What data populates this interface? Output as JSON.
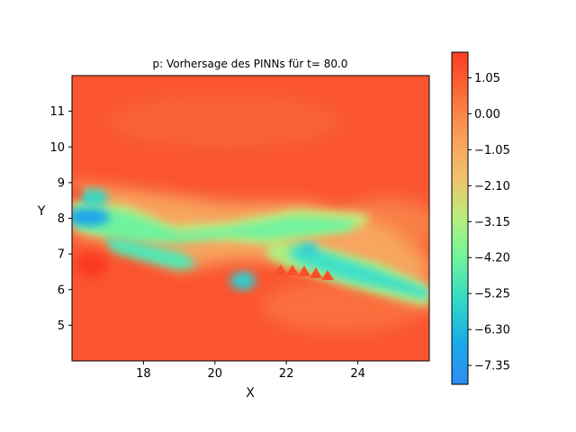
{
  "chart_data": {
    "type": "heatmap",
    "title": "p: Vorhersage des PINNs für t= 80.0",
    "xlabel": "X",
    "ylabel": "Y",
    "xlim": [
      16.0,
      26.0
    ],
    "ylim": [
      4.0,
      12.0
    ],
    "x_ticks": [
      18,
      20,
      22,
      24
    ],
    "x_tick_labels": [
      "18",
      "20",
      "22",
      "24"
    ],
    "y_ticks": [
      5,
      6,
      7,
      8,
      9,
      10,
      11
    ],
    "y_tick_labels": [
      "5",
      "6",
      "7",
      "8",
      "9",
      "10",
      "11"
    ],
    "colorbar": {
      "range": [
        -7.9,
        1.8
      ],
      "ticks": [
        1.05,
        0.0,
        -1.05,
        -2.1,
        -3.15,
        -4.2,
        -5.25,
        -6.3,
        -7.35
      ],
      "tick_labels": [
        "1.05",
        "0.00",
        "−1.05",
        "−2.10",
        "−3.15",
        "−4.20",
        "−5.25",
        "−6.30",
        "−7.35"
      ],
      "colormap": "rainbow"
    },
    "field_features": [
      {
        "feature": "background",
        "value": 1.2
      },
      {
        "feature": "band",
        "x": [
          16.0,
          18.5,
          21.0,
          22.0,
          24.0
        ],
        "y": [
          8.0,
          7.6,
          7.6,
          7.85,
          8.1
        ],
        "value": -3.3
      },
      {
        "feature": "band",
        "x": [
          17.0,
          19.2
        ],
        "y": [
          7.2,
          6.8
        ],
        "value": -3.8
      },
      {
        "feature": "band",
        "x": [
          22.3,
          24.0,
          26.0
        ],
        "y": [
          7.1,
          6.5,
          5.8
        ],
        "value": -4.2
      },
      {
        "feature": "blob",
        "x": 16.6,
        "y": 7.95,
        "value": -7.6
      },
      {
        "feature": "blob",
        "x": 16.7,
        "y": 8.5,
        "value": -4.5
      },
      {
        "feature": "blob",
        "x": 21.0,
        "y": 6.25,
        "value": -5.5
      },
      {
        "feature": "blob",
        "x": 22.7,
        "y": 7.05,
        "value": -5.8
      },
      {
        "feature": "blob",
        "x": 16.7,
        "y": 6.7,
        "value": 1.8
      }
    ]
  }
}
